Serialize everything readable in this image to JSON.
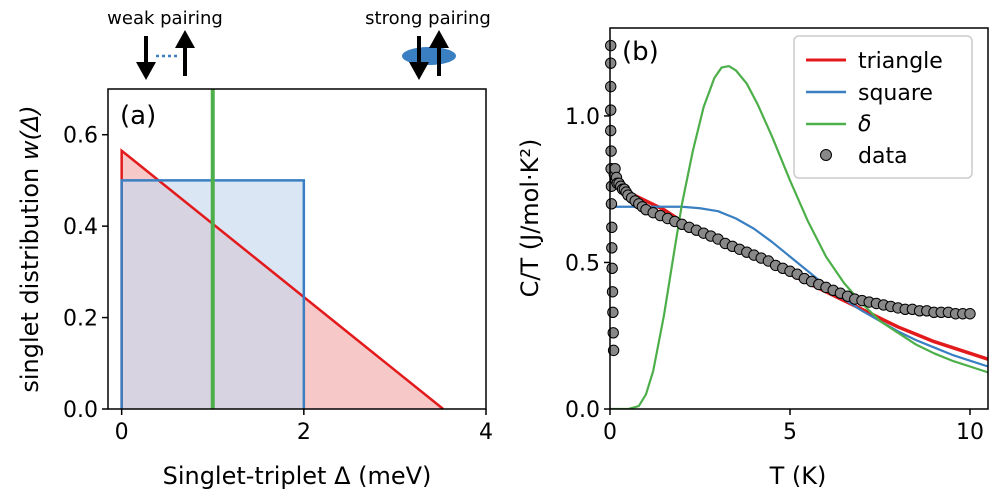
{
  "colors": {
    "red": "#e31a1c",
    "blue": "#3a7fc1",
    "green": "#4daf4a",
    "data_fill": "#888888",
    "red_fill": "#f4b6b6",
    "blue_fill": "#c6d9ec"
  },
  "annotations": {
    "weak": "weak pairing",
    "strong": "strong pairing"
  },
  "chart_data": [
    {
      "type": "area",
      "panel_label": "(a)",
      "xlabel": "Singlet-triplet Δ (meV)",
      "ylabel_main": "singlet distribution ",
      "ylabel_func": "w(Δ)",
      "xlim": [
        -0.15,
        4.0
      ],
      "ylim": [
        0.0,
        0.7
      ],
      "xticks": [
        0,
        2,
        4
      ],
      "xtick_labels": [
        "0",
        "2",
        "4"
      ],
      "yticks": [
        0.0,
        0.2,
        0.4,
        0.6
      ],
      "ytick_labels": [
        "0.0",
        "0.2",
        "0.4",
        "0.6"
      ],
      "series": [
        {
          "name": "triangle",
          "color": "red",
          "x": [
            0.0,
            0.0,
            3.53
          ],
          "y": [
            0.0,
            0.565,
            0.0
          ]
        },
        {
          "name": "square",
          "color": "blue",
          "x": [
            0.0,
            0.0,
            2.0,
            2.0
          ],
          "y": [
            0.0,
            0.5,
            0.5,
            0.0
          ]
        },
        {
          "name": "δ",
          "color": "green",
          "x": [
            1.0,
            1.0
          ],
          "y": [
            0.0,
            0.7
          ]
        }
      ]
    },
    {
      "type": "line",
      "panel_label": "(b)",
      "xlabel": "T (K)",
      "ylabel": "C/T (J/mol·K²)",
      "xlim": [
        0.0,
        10.5
      ],
      "ylim": [
        0.0,
        1.3
      ],
      "xticks": [
        0,
        5,
        10
      ],
      "xtick_labels": [
        "0",
        "5",
        "10"
      ],
      "yticks": [
        0.0,
        0.5,
        1.0
      ],
      "ytick_labels": [
        "0.0",
        "0.5",
        "1.0"
      ],
      "legend": [
        "triangle",
        "square",
        "δ",
        "data"
      ],
      "legend_position": "top-right",
      "series": [
        {
          "name": "triangle",
          "color": "red",
          "x": [
            0,
            0.5,
            1,
            1.5,
            2,
            2.5,
            3,
            3.5,
            4,
            4.5,
            5,
            5.5,
            6,
            6.5,
            7,
            7.5,
            8,
            8.5,
            9,
            9.5,
            10,
            10.5
          ],
          "y": [
            0.78,
            0.74,
            0.71,
            0.68,
            0.64,
            0.61,
            0.58,
            0.55,
            0.52,
            0.49,
            0.46,
            0.43,
            0.4,
            0.37,
            0.34,
            0.31,
            0.28,
            0.255,
            0.23,
            0.21,
            0.19,
            0.17
          ]
        },
        {
          "name": "square",
          "color": "blue",
          "x": [
            0,
            0.3,
            1,
            2,
            2.5,
            3,
            3.5,
            4,
            4.5,
            5,
            5.5,
            6,
            6.5,
            7,
            7.5,
            8,
            8.5,
            9,
            9.5,
            10,
            10.5
          ],
          "y": [
            0.69,
            0.69,
            0.69,
            0.69,
            0.685,
            0.675,
            0.65,
            0.615,
            0.57,
            0.52,
            0.47,
            0.42,
            0.375,
            0.335,
            0.3,
            0.265,
            0.235,
            0.21,
            0.185,
            0.165,
            0.145
          ]
        },
        {
          "name": "δ",
          "color": "green",
          "x": [
            0,
            0.5,
            0.8,
            1.0,
            1.2,
            1.5,
            1.8,
            2.0,
            2.3,
            2.6,
            2.9,
            3.1,
            3.3,
            3.5,
            3.8,
            4.1,
            4.5,
            5.0,
            5.5,
            6.0,
            6.5,
            7.0,
            7.5,
            8.0,
            8.5,
            9.0,
            9.5,
            10.0,
            10.5
          ],
          "y": [
            0.0,
            0.0,
            0.01,
            0.05,
            0.13,
            0.32,
            0.55,
            0.7,
            0.88,
            1.03,
            1.13,
            1.165,
            1.17,
            1.155,
            1.11,
            1.04,
            0.93,
            0.78,
            0.64,
            0.52,
            0.43,
            0.36,
            0.3,
            0.26,
            0.22,
            0.19,
            0.165,
            0.145,
            0.125
          ]
        },
        {
          "name": "data",
          "color": "data_fill",
          "type": "scatter",
          "x": [
            0.02,
            0.02,
            0.02,
            0.02,
            0.02,
            0.03,
            0.03,
            0.04,
            0.04,
            0.05,
            0.05,
            0.06,
            0.07,
            0.08,
            0.09,
            0.1,
            0.12,
            0.14,
            0.16,
            0.18,
            0.2,
            0.25,
            0.3,
            0.35,
            0.4,
            0.45,
            0.5,
            0.6,
            0.7,
            0.8,
            0.9,
            1.0,
            1.2,
            1.4,
            1.6,
            1.8,
            2.0,
            2.2,
            2.4,
            2.6,
            2.8,
            3.0,
            3.2,
            3.4,
            3.6,
            3.8,
            4.0,
            4.2,
            4.4,
            4.6,
            4.8,
            5.0,
            5.2,
            5.4,
            5.6,
            5.8,
            6.0,
            6.2,
            6.4,
            6.6,
            6.8,
            7.0,
            7.2,
            7.4,
            7.6,
            7.8,
            8.0,
            8.2,
            8.4,
            8.6,
            8.8,
            9.0,
            9.2,
            9.4,
            9.6,
            9.8,
            10.0
          ],
          "y": [
            1.24,
            1.18,
            1.1,
            1.02,
            0.95,
            0.88,
            0.82,
            0.76,
            0.7,
            0.62,
            0.55,
            0.48,
            0.4,
            0.33,
            0.26,
            0.2,
            0.8,
            0.82,
            0.78,
            0.79,
            0.77,
            0.77,
            0.76,
            0.75,
            0.75,
            0.74,
            0.73,
            0.72,
            0.71,
            0.7,
            0.69,
            0.68,
            0.67,
            0.66,
            0.65,
            0.64,
            0.63,
            0.62,
            0.61,
            0.6,
            0.59,
            0.58,
            0.565,
            0.555,
            0.545,
            0.535,
            0.525,
            0.515,
            0.505,
            0.49,
            0.48,
            0.47,
            0.46,
            0.445,
            0.435,
            0.425,
            0.415,
            0.405,
            0.395,
            0.385,
            0.375,
            0.37,
            0.365,
            0.36,
            0.355,
            0.35,
            0.345,
            0.34,
            0.34,
            0.335,
            0.335,
            0.33,
            0.33,
            0.33,
            0.325,
            0.325,
            0.325
          ]
        }
      ]
    }
  ]
}
